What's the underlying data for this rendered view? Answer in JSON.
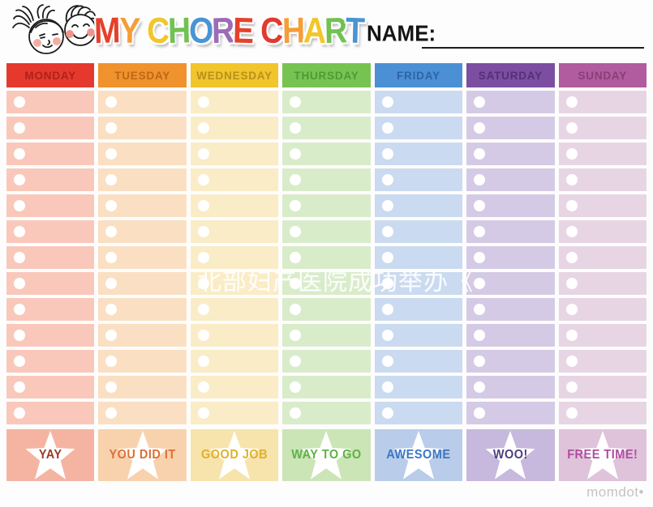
{
  "title": {
    "letters": [
      {
        "ch": "M",
        "color": "#e5402c"
      },
      {
        "ch": "Y",
        "color": "#f59d38"
      },
      {
        "ch": " "
      },
      {
        "ch": "C",
        "color": "#f2c62a"
      },
      {
        "ch": "H",
        "color": "#72c153"
      },
      {
        "ch": "O",
        "color": "#4a94d3"
      },
      {
        "ch": "R",
        "color": "#9c6cb7"
      },
      {
        "ch": "E",
        "color": "#e5402c"
      },
      {
        "ch": " "
      },
      {
        "ch": "C",
        "color": "#e23a2e"
      },
      {
        "ch": "H",
        "color": "#f59d38"
      },
      {
        "ch": "A",
        "color": "#f2c62a"
      },
      {
        "ch": "R",
        "color": "#72c153"
      },
      {
        "ch": "T",
        "color": "#4a94d3"
      }
    ]
  },
  "name_field": {
    "label": "NAME:"
  },
  "chart": {
    "rows": 13,
    "columns": [
      {
        "day": "MONDAY",
        "header_bg": "#e6392e",
        "header_fg": "#ac2318",
        "cell_bg": "#f9c8ba",
        "band_bg": "#f5b4a2",
        "award": "YAY",
        "award_fg": "#9c3a27"
      },
      {
        "day": "TUESDAY",
        "header_bg": "#f0922d",
        "header_fg": "#bf6716",
        "cell_bg": "#fbdfc2",
        "band_bg": "#f8d2ad",
        "award": "YOU DID IT",
        "award_fg": "#dd7038"
      },
      {
        "day": "WEDNESDAY",
        "header_bg": "#f1c52b",
        "header_fg": "#b7901e",
        "cell_bg": "#faecc6",
        "band_bg": "#f7e3ac",
        "award": "GOOD JOB",
        "award_fg": "#dfb02c"
      },
      {
        "day": "THURSDAY",
        "header_bg": "#77c352",
        "header_fg": "#4f9a35",
        "cell_bg": "#d9ecca",
        "band_bg": "#cbe5b7",
        "award": "WAY TO GO",
        "award_fg": "#5fb246"
      },
      {
        "day": "FRIDAY",
        "header_bg": "#4b90d4",
        "header_fg": "#2d63a6",
        "cell_bg": "#cadaf0",
        "band_bg": "#b9cdea",
        "award": "AWESOME",
        "award_fg": "#3c76c3"
      },
      {
        "day": "SATURDAY",
        "header_bg": "#7c4ea1",
        "header_fg": "#552f77",
        "cell_bg": "#d5cae5",
        "band_bg": "#c7b8dd",
        "award": "WOO!",
        "award_fg": "#4e3f80"
      },
      {
        "day": "SUNDAY",
        "header_bg": "#b05c9f",
        "header_fg": "#8a3d79",
        "cell_bg": "#e7d5e4",
        "band_bg": "#dfc3da",
        "award": "FREE TIME!",
        "award_fg": "#b14da2"
      }
    ]
  },
  "watermarks": {
    "center_text": "北部妇产医院成功举办《",
    "brand": "momdot",
    "brand_dot": "•"
  }
}
